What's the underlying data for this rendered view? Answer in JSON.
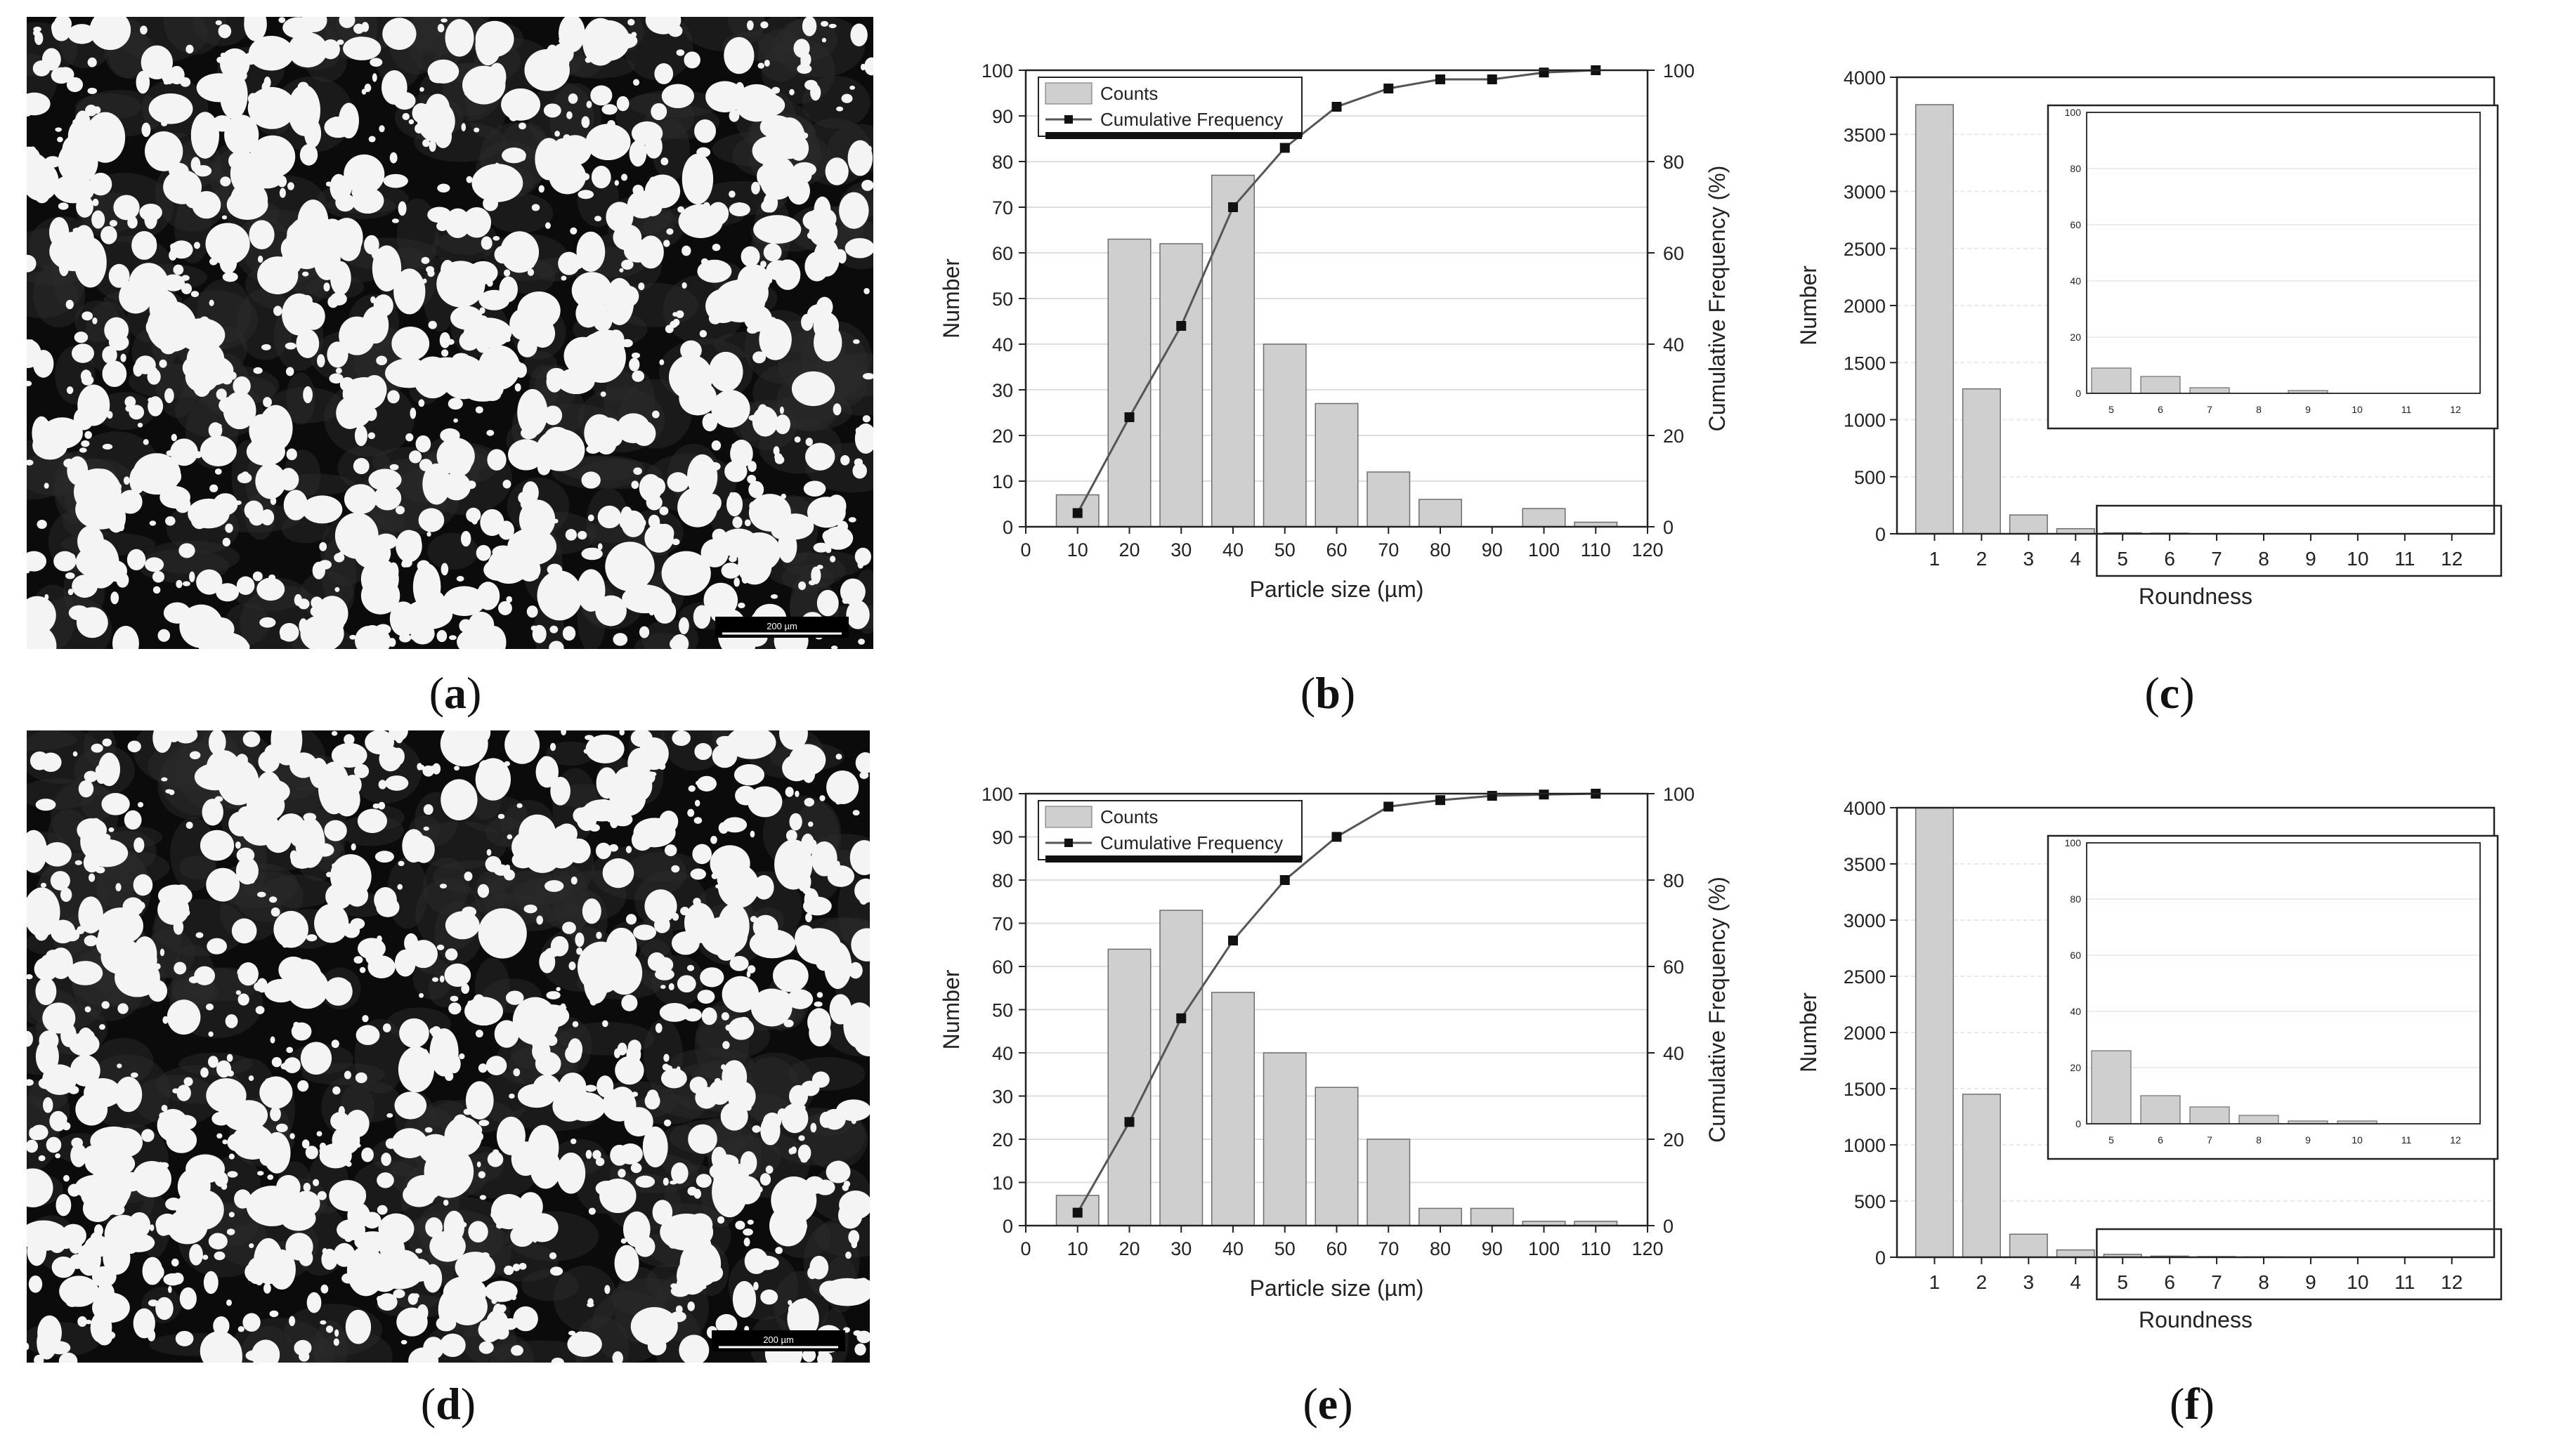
{
  "panels": {
    "a": {
      "label": "a",
      "scale_text": "200 µm"
    },
    "d": {
      "label": "d",
      "scale_text": "200 µm"
    },
    "b": {
      "label": "b"
    },
    "c": {
      "label": "c"
    },
    "e": {
      "label": "e"
    },
    "f": {
      "label": "f"
    }
  },
  "colors": {
    "bar": "#cfcfcf",
    "bar_stroke": "#6e6e6e",
    "line": "#555555",
    "marker": "#111111",
    "grid": "#dddddd",
    "micro_bg": "#0b0b0b",
    "particle": "#f4f4f4"
  },
  "chart_data": [
    {
      "id": "b",
      "type": "bar",
      "xlabel": "Particle size (µm)",
      "ylabel": "Number",
      "y2label": "Cumulative Frequency (%)",
      "xlim": [
        0,
        120
      ],
      "xticks": [
        0,
        10,
        20,
        30,
        40,
        50,
        60,
        70,
        80,
        90,
        100,
        110,
        120
      ],
      "ylim": [
        0,
        100
      ],
      "yticks": [
        0,
        10,
        20,
        30,
        40,
        50,
        60,
        70,
        80,
        90,
        100
      ],
      "y2lim": [
        0,
        100
      ],
      "y2ticks": [
        0,
        20,
        40,
        60,
        80,
        100
      ],
      "grid": true,
      "legend": "top-left",
      "legend_counts": "Counts",
      "legend_cum": "Cumulative Frequency",
      "bins": [
        10,
        20,
        30,
        40,
        50,
        60,
        70,
        80,
        90,
        100,
        110
      ],
      "counts": [
        7,
        63,
        62,
        77,
        40,
        27,
        12,
        6,
        0,
        4,
        1
      ],
      "cumulative_x": [
        10,
        20,
        30,
        40,
        50,
        60,
        70,
        80,
        90,
        100,
        110
      ],
      "cumulative": [
        3,
        24,
        44,
        70,
        83,
        92,
        96,
        98,
        98,
        99.5,
        100
      ]
    },
    {
      "id": "e",
      "type": "bar",
      "xlabel": "Particle size (µm)",
      "ylabel": "Number",
      "y2label": "Cumulative Frequency (%)",
      "xlim": [
        0,
        120
      ],
      "xticks": [
        0,
        10,
        20,
        30,
        40,
        50,
        60,
        70,
        80,
        90,
        100,
        110,
        120
      ],
      "ylim": [
        0,
        100
      ],
      "yticks": [
        0,
        10,
        20,
        30,
        40,
        50,
        60,
        70,
        80,
        90,
        100
      ],
      "y2lim": [
        0,
        100
      ],
      "y2ticks": [
        0,
        20,
        40,
        60,
        80,
        100
      ],
      "grid": true,
      "legend": "top-left",
      "legend_counts": "Counts",
      "legend_cum": "Cumulative Frequency",
      "bins": [
        10,
        20,
        30,
        40,
        50,
        60,
        70,
        80,
        90,
        100,
        110
      ],
      "counts": [
        7,
        64,
        73,
        54,
        40,
        32,
        20,
        4,
        4,
        1,
        1
      ],
      "cumulative_x": [
        10,
        20,
        30,
        40,
        50,
        60,
        70,
        80,
        90,
        100,
        110
      ],
      "cumulative": [
        3,
        24,
        48,
        66,
        80,
        90,
        97,
        98.5,
        99.5,
        99.8,
        100
      ]
    },
    {
      "id": "c",
      "type": "bar",
      "xlabel": "Roundness",
      "ylabel": "Number",
      "xticks": [
        1,
        2,
        3,
        4,
        5,
        6,
        7,
        8,
        9,
        10,
        11,
        12
      ],
      "ylim": [
        0,
        4000
      ],
      "yticks": [
        0,
        500,
        1000,
        1500,
        2000,
        2500,
        3000,
        3500,
        4000
      ],
      "grid": true,
      "categories": [
        1,
        2,
        3,
        4,
        5,
        6,
        7,
        8,
        9,
        10,
        11,
        12
      ],
      "values": [
        3760,
        1270,
        165,
        45,
        9,
        6,
        2,
        0,
        1,
        0,
        0,
        0
      ],
      "inset": {
        "ylim": [
          0,
          100
        ],
        "yticks": [
          0,
          20,
          40,
          60,
          80,
          100
        ],
        "categories": [
          5,
          6,
          7,
          8,
          9,
          10,
          11,
          12
        ],
        "values": [
          9,
          6,
          2,
          0,
          1,
          0,
          0,
          0
        ]
      }
    },
    {
      "id": "f",
      "type": "bar",
      "xlabel": "Roundness",
      "ylabel": "Number",
      "xticks": [
        1,
        2,
        3,
        4,
        5,
        6,
        7,
        8,
        9,
        10,
        11,
        12
      ],
      "ylim": [
        0,
        4000
      ],
      "yticks": [
        0,
        500,
        1000,
        1500,
        2000,
        2500,
        3000,
        3500,
        4000
      ],
      "grid": true,
      "categories": [
        1,
        2,
        3,
        4,
        5,
        6,
        7,
        8,
        9,
        10,
        11,
        12
      ],
      "values": [
        4000,
        1450,
        205,
        65,
        26,
        10,
        6,
        3,
        1,
        1,
        0,
        0
      ],
      "inset": {
        "ylim": [
          0,
          100
        ],
        "yticks": [
          0,
          20,
          40,
          60,
          80,
          100
        ],
        "categories": [
          5,
          6,
          7,
          8,
          9,
          10,
          11,
          12
        ],
        "values": [
          26,
          10,
          6,
          3,
          1,
          1,
          0,
          0
        ]
      }
    }
  ]
}
